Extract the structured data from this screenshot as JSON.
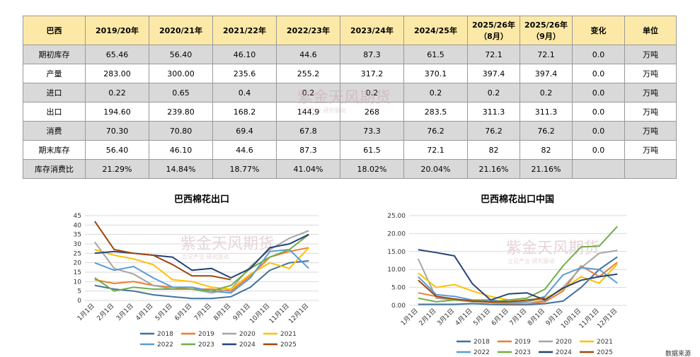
{
  "table": {
    "header": [
      "巴西",
      "2019/20年",
      "2020/21年",
      "2021/22年",
      "2022/23年",
      "2023/24年",
      "2024/25年",
      "2025/26年（8月）",
      "2025/26年（9月）",
      "变化",
      "单位"
    ],
    "rows": [
      [
        "期初库存",
        "65.46",
        "56.40",
        "46.10",
        "44.6",
        "87.3",
        "61.5",
        "72.1",
        "72.1",
        "0.0",
        "万吨"
      ],
      [
        "产量",
        "283.00",
        "300.00",
        "235.6",
        "255.2",
        "317.2",
        "370.1",
        "397.4",
        "397.4",
        "0.0",
        "万吨"
      ],
      [
        "进口",
        "0.22",
        "0.65",
        "0.4",
        "0.2",
        "0.2",
        "0.2",
        "0.2",
        "0.2",
        "0.0",
        "万吨"
      ],
      [
        "出口",
        "194.60",
        "239.80",
        "168.2",
        "144.9",
        "268",
        "283.5",
        "311.3",
        "311.3",
        "0.0",
        "万吨"
      ],
      [
        "消费",
        "70.30",
        "70.80",
        "69.4",
        "67.8",
        "73.3",
        "76.2",
        "76.2",
        "76.2",
        "0.0",
        "万吨"
      ],
      [
        "期末库存",
        "56.40",
        "46.10",
        "44.6",
        "87.3",
        "61.5",
        "72.1",
        "82",
        "82",
        "0.0",
        "万吨"
      ],
      [
        "库存消费比",
        "21.29%",
        "14.84%",
        "18.77%",
        "41.04%",
        "18.02%",
        "20.04%",
        "21.16%",
        "21.16%"
      ]
    ]
  },
  "watermark": {
    "name": "紫金天风期货",
    "slogan": "立足产业 研究驱动"
  },
  "source": "数据来源",
  "chart_data": [
    {
      "type": "line",
      "title": "巴西棉花出口",
      "categories": [
        "1月1日",
        "2月1日",
        "3月1日",
        "4月1日",
        "5月1日",
        "6月1日",
        "7月1日",
        "8月1日",
        "9月1日",
        "10月1日",
        "11月1日",
        "12月1日"
      ],
      "ylim": [
        0,
        45
      ],
      "yticks": [
        0,
        5,
        10,
        15,
        20,
        25,
        30,
        35,
        40,
        45
      ],
      "series": [
        {
          "name": "2018",
          "color": "#41719c",
          "values": [
            8,
            6,
            5,
            3,
            2,
            1,
            1,
            2,
            7,
            16,
            20,
            21
          ]
        },
        {
          "name": "2019",
          "color": "#ed7d31",
          "values": [
            11,
            9,
            10,
            8,
            7,
            6,
            6,
            5,
            13,
            23,
            26,
            28
          ]
        },
        {
          "name": "2020",
          "color": "#a5a5a5",
          "values": [
            31,
            17,
            14,
            8,
            6,
            6,
            4,
            6,
            18,
            27,
            33,
            37
          ]
        },
        {
          "name": "2021",
          "color": "#ffc000",
          "values": [
            27,
            24,
            22,
            19,
            11,
            10,
            7,
            6,
            14,
            20,
            17,
            28
          ]
        },
        {
          "name": "2022",
          "color": "#5b9bd5",
          "values": [
            20,
            16,
            18,
            12,
            7,
            7,
            5,
            4,
            12,
            26,
            27,
            17
          ]
        },
        {
          "name": "2023",
          "color": "#70ad47",
          "values": [
            12,
            5,
            7,
            6,
            6,
            6,
            5,
            8,
            17,
            23,
            27,
            35
          ]
        },
        {
          "name": "2024",
          "color": "#264478",
          "values": [
            25,
            26,
            25,
            24,
            23,
            16,
            17,
            12,
            17,
            28,
            30,
            35
          ]
        },
        {
          "name": "2025",
          "color": "#9e480e",
          "values": [
            42,
            27,
            25,
            24,
            19,
            13,
            13,
            11,
            null,
            null,
            null,
            null
          ]
        }
      ]
    },
    {
      "type": "line",
      "title": "巴西棉花出口中国",
      "categories": [
        "1月1日",
        "2月1日",
        "3月1日",
        "4月1日",
        "5月1日",
        "6月1日",
        "7月1日",
        "8月1日",
        "9月1日",
        "10月1日",
        "11月1日",
        "12月1日"
      ],
      "ylim": [
        0,
        25
      ],
      "yticks": [
        {
          "value": 0,
          "label": "0.00"
        },
        {
          "value": 5,
          "label": "5.00"
        },
        {
          "value": 10,
          "label": "10.00"
        },
        {
          "value": 15,
          "label": "15.00"
        },
        {
          "value": 20,
          "label": "20.00"
        },
        {
          "value": 25,
          "label": "25.00"
        }
      ],
      "series": [
        {
          "name": "2018",
          "color": "#41719c",
          "values": [
            0.3,
            0.3,
            0.3,
            0.5,
            0.3,
            0.2,
            0.2,
            0.5,
            1.2,
            5,
            10,
            13.5
          ]
        },
        {
          "name": "2019",
          "color": "#ed7d31",
          "values": [
            3.5,
            2.5,
            1.5,
            1,
            0.8,
            0.5,
            0.5,
            1,
            4,
            11,
            8,
            12
          ]
        },
        {
          "name": "2020",
          "color": "#a5a5a5",
          "values": [
            13,
            2,
            1.5,
            1,
            1,
            0.8,
            0.5,
            1.5,
            5,
            10.5,
            14.5,
            15.3
          ]
        },
        {
          "name": "2021",
          "color": "#ffc000",
          "values": [
            9,
            5,
            5.8,
            4,
            2.5,
            1.5,
            1,
            2,
            4.5,
            8,
            6.2,
            11.5
          ]
        },
        {
          "name": "2022",
          "color": "#5b9bd5",
          "values": [
            8,
            3,
            2.5,
            1.5,
            1.5,
            1,
            1,
            2.5,
            8.5,
            10.5,
            10,
            6.2
          ]
        },
        {
          "name": "2023",
          "color": "#70ad47",
          "values": [
            2,
            1,
            1.5,
            1.5,
            1,
            1.5,
            2,
            4.5,
            11,
            16.3,
            16.5,
            22
          ]
        },
        {
          "name": "2024",
          "color": "#264478",
          "values": [
            15.5,
            14.7,
            13.8,
            6,
            1.5,
            3.2,
            3.5,
            1.5,
            4.8,
            7,
            8,
            8.7
          ]
        },
        {
          "name": "2025",
          "color": "#9e480e",
          "values": [
            7,
            2.5,
            1.8,
            1.2,
            1,
            1,
            1.5,
            2,
            null,
            null,
            null,
            null
          ]
        }
      ]
    }
  ]
}
